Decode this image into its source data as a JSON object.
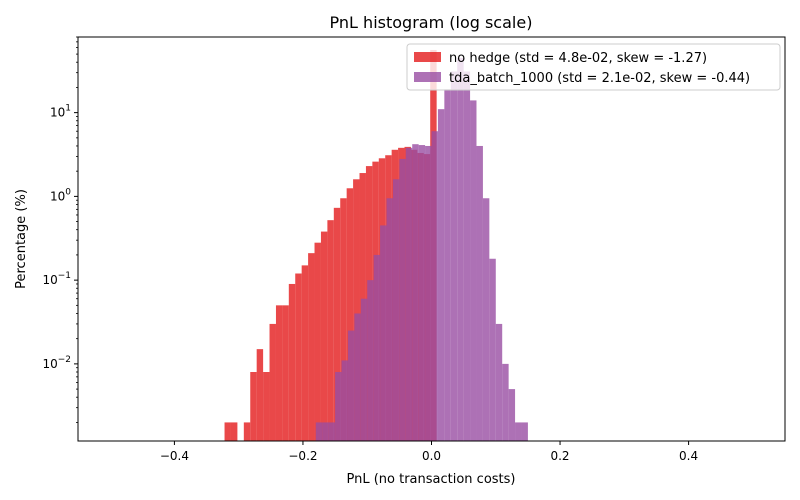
{
  "chart_data": {
    "type": "histogram",
    "title": "PnL histogram (log scale)",
    "xlabel": "PnL (no transaction costs)",
    "ylabel": "Percentage (%)",
    "xlim": [
      -0.55,
      0.55
    ],
    "ylim": [
      0.0012,
      80
    ],
    "yscale": "log",
    "grid": false,
    "legend_position": "top-right",
    "x_ticks": [
      {
        "value": -0.4,
        "label": "−0.4"
      },
      {
        "value": -0.2,
        "label": "−0.2"
      },
      {
        "value": 0.0,
        "label": "0.0"
      },
      {
        "value": 0.2,
        "label": "0.2"
      },
      {
        "value": 0.4,
        "label": "0.4"
      }
    ],
    "y_ticks": [
      {
        "value": 0.01,
        "base": "10",
        "exp": "−2"
      },
      {
        "value": 0.1,
        "base": "10",
        "exp": "−1"
      },
      {
        "value": 1,
        "base": "10",
        "exp": "0"
      },
      {
        "value": 10,
        "base": "10",
        "exp": "1"
      }
    ],
    "series": [
      {
        "name": "no hedge (std = 4.8e-02, skew = -1.27)",
        "color": "#e41a1c",
        "opacity": 0.8,
        "bin_width": 0.01,
        "bins": [
          [
            -0.317,
            0.002
          ],
          [
            -0.307,
            0.002
          ],
          [
            -0.287,
            0.002
          ],
          [
            -0.277,
            0.008
          ],
          [
            -0.267,
            0.015
          ],
          [
            -0.257,
            0.008
          ],
          [
            -0.247,
            0.03
          ],
          [
            -0.237,
            0.05
          ],
          [
            -0.227,
            0.05
          ],
          [
            -0.217,
            0.09
          ],
          [
            -0.207,
            0.12
          ],
          [
            -0.197,
            0.15
          ],
          [
            -0.187,
            0.21
          ],
          [
            -0.177,
            0.28
          ],
          [
            -0.167,
            0.38
          ],
          [
            -0.157,
            0.52
          ],
          [
            -0.147,
            0.73
          ],
          [
            -0.137,
            0.95
          ],
          [
            -0.127,
            1.25
          ],
          [
            -0.117,
            1.6
          ],
          [
            -0.107,
            1.9
          ],
          [
            -0.097,
            2.3
          ],
          [
            -0.087,
            2.6
          ],
          [
            -0.077,
            2.85
          ],
          [
            -0.067,
            3.1
          ],
          [
            -0.057,
            3.6
          ],
          [
            -0.047,
            3.8
          ],
          [
            -0.037,
            3.9
          ],
          [
            -0.027,
            3.6
          ],
          [
            -0.017,
            3.3
          ],
          [
            -0.007,
            3.2
          ],
          [
            0.003,
            56.0
          ]
        ]
      },
      {
        "name": "tda_batch_1000 (std = 2.1e-02, skew = -0.44)",
        "color": "#984ea3",
        "opacity": 0.8,
        "bin_width": 0.01,
        "bins": [
          [
            -0.175,
            0.002
          ],
          [
            -0.165,
            0.002
          ],
          [
            -0.155,
            0.002
          ],
          [
            -0.145,
            0.008
          ],
          [
            -0.135,
            0.011
          ],
          [
            -0.125,
            0.025
          ],
          [
            -0.115,
            0.04
          ],
          [
            -0.105,
            0.06
          ],
          [
            -0.095,
            0.1
          ],
          [
            -0.085,
            0.2
          ],
          [
            -0.075,
            0.45
          ],
          [
            -0.065,
            0.95
          ],
          [
            -0.055,
            1.6
          ],
          [
            -0.045,
            2.8
          ],
          [
            -0.035,
            3.8
          ],
          [
            -0.025,
            4.2
          ],
          [
            -0.015,
            4.1
          ],
          [
            -0.005,
            4.0
          ],
          [
            0.005,
            6.0
          ],
          [
            0.015,
            11.0
          ],
          [
            0.025,
            19.0
          ],
          [
            0.035,
            31.0
          ],
          [
            0.045,
            45.0
          ],
          [
            0.055,
            31.0
          ],
          [
            0.065,
            14.0
          ],
          [
            0.075,
            4.0
          ],
          [
            0.085,
            0.95
          ],
          [
            0.095,
            0.18
          ],
          [
            0.105,
            0.03
          ],
          [
            0.115,
            0.01
          ],
          [
            0.125,
            0.005
          ],
          [
            0.135,
            0.002
          ],
          [
            0.145,
            0.002
          ]
        ]
      }
    ]
  }
}
